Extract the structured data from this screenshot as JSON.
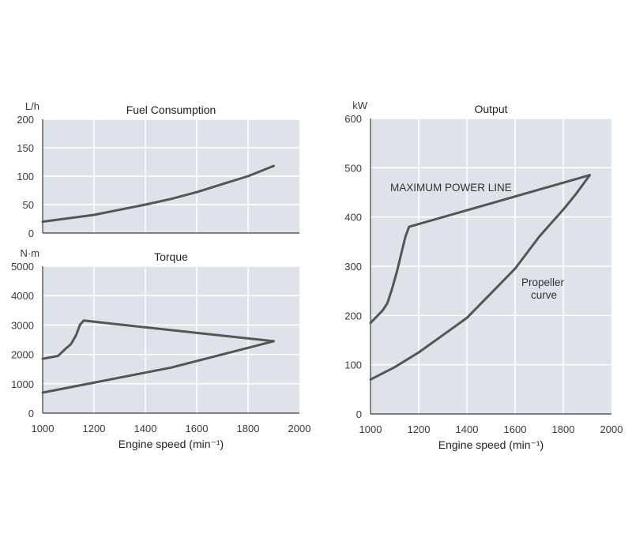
{
  "chart_data": [
    {
      "id": "fuel",
      "type": "line",
      "title": "Fuel Consumption",
      "unit": "L/h",
      "xlim": [
        1000,
        2000
      ],
      "ylim": [
        0,
        200
      ],
      "xticks": [
        1000,
        1200,
        1400,
        1600,
        1800,
        2000
      ],
      "yticks": [
        0,
        50,
        100,
        150,
        200
      ],
      "xlabel": "",
      "grid": true,
      "series": [
        {
          "name": "Fuel Consumption",
          "x": [
            1000,
            1200,
            1400,
            1500,
            1600,
            1700,
            1800,
            1900
          ],
          "y": [
            20,
            32,
            50,
            60,
            72,
            86,
            100,
            118
          ]
        }
      ]
    },
    {
      "id": "torque",
      "type": "line",
      "title": "Torque",
      "unit": "N·m",
      "xlim": [
        1000,
        2000
      ],
      "ylim": [
        0,
        5000
      ],
      "xticks": [
        1000,
        1200,
        1400,
        1600,
        1800,
        2000
      ],
      "yticks": [
        0,
        1000,
        2000,
        3000,
        4000,
        5000
      ],
      "xlabel": "Engine speed (min⁻¹)",
      "grid": true,
      "series": [
        {
          "name": "Torque",
          "x": [
            1000,
            1060,
            1090,
            1110,
            1130,
            1145,
            1160,
            1900,
            1500,
            1000
          ],
          "y": [
            1850,
            1950,
            2200,
            2350,
            2650,
            3000,
            3150,
            2450,
            1550,
            700
          ]
        }
      ]
    },
    {
      "id": "output",
      "type": "line",
      "title": "Output",
      "unit": "kW",
      "xlim": [
        1000,
        2000
      ],
      "ylim": [
        0,
        600
      ],
      "xticks": [
        1000,
        1200,
        1400,
        1600,
        1800,
        2000
      ],
      "yticks": [
        0,
        100,
        200,
        300,
        400,
        500,
        600
      ],
      "xlabel": "Engine speed (min⁻¹)",
      "grid": true,
      "annotations": [
        "MAXIMUM POWER LINE",
        "Propeller",
        "curve"
      ],
      "series": [
        {
          "name": "MAXIMUM POWER LINE",
          "x": [
            1000,
            1050,
            1070,
            1090,
            1110,
            1130,
            1145,
            1160,
            1910
          ],
          "y": [
            185,
            210,
            225,
            255,
            290,
            330,
            360,
            380,
            485
          ]
        },
        {
          "name": "Propeller curve",
          "x": [
            1000,
            1100,
            1200,
            1300,
            1400,
            1500,
            1600,
            1700,
            1800,
            1850,
            1910
          ],
          "y": [
            70,
            95,
            125,
            160,
            195,
            245,
            295,
            360,
            415,
            445,
            485
          ]
        }
      ]
    }
  ]
}
